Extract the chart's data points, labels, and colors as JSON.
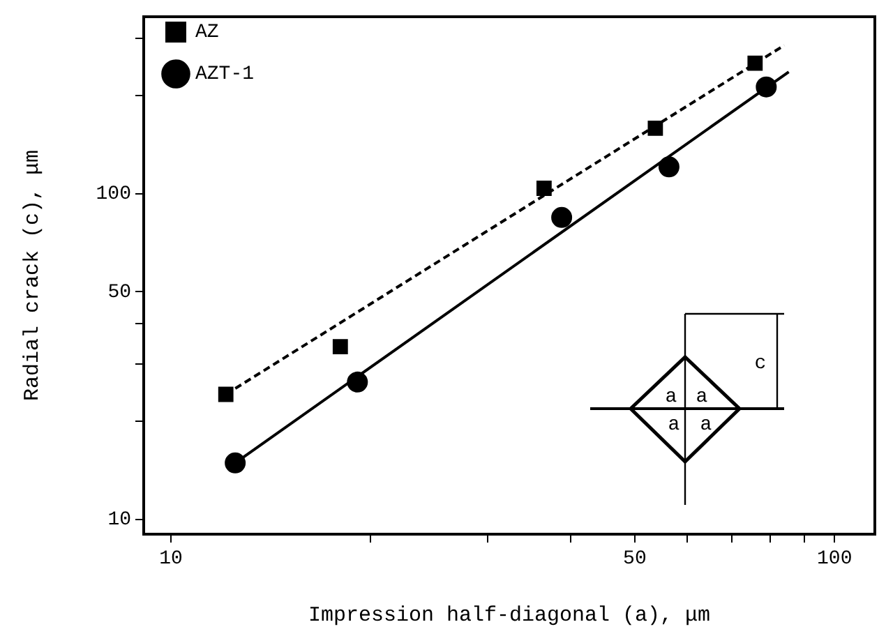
{
  "chart_data": {
    "type": "scatter",
    "xlabel": "Impression half-diagonal (a), μm",
    "ylabel": "Radial crack (c), μm",
    "log": "xy",
    "grid": false,
    "legend": "top left",
    "xlim": [
      9.1,
      115
    ],
    "xticks": [
      10,
      {
        "value": 20,
        "label": null
      },
      {
        "value": 30,
        "label": null
      },
      {
        "value": 40,
        "label": null
      },
      50,
      {
        "value": 60,
        "label": null
      },
      {
        "value": 70,
        "label": null
      },
      {
        "value": 80,
        "label": null
      },
      {
        "value": 90,
        "label": null
      },
      100
    ],
    "ylim": [
      9,
      350
    ],
    "yticks": [
      10,
      {
        "value": 20,
        "label": null
      },
      {
        "value": 30,
        "label": null
      },
      {
        "value": 40,
        "label": null
      },
      50,
      100,
      {
        "value": 200,
        "label": null
      },
      {
        "value": 300,
        "label": null
      }
    ],
    "annotations": [
      "a",
      "a",
      "a",
      "a",
      "c"
    ],
    "series": [
      {
        "name": "AZ",
        "type": "scatter",
        "marker": "square",
        "color": "#000000",
        "x": [
          12.1,
          18.0,
          36.5,
          53.7,
          75.9
        ],
        "values": [
          24.2,
          33.9,
          104,
          159,
          252
        ]
      },
      {
        "name": "AZT-1",
        "type": "scatter",
        "marker": "circle",
        "color": "#000000",
        "x": [
          12.5,
          19.1,
          38.8,
          56.3,
          78.9
        ],
        "values": [
          14.9,
          26.4,
          84.6,
          121,
          213
        ]
      },
      {
        "type": "line",
        "line_style": "dashed",
        "marker": "none",
        "color": "#000000",
        "x": [
          12.1,
          84.0
        ],
        "values": [
          24.2,
          286
        ]
      },
      {
        "type": "line",
        "line_style": "solid",
        "marker": "none",
        "color": "#000000",
        "x": [
          12.5,
          85.3
        ],
        "values": [
          14.9,
          237
        ]
      }
    ]
  }
}
